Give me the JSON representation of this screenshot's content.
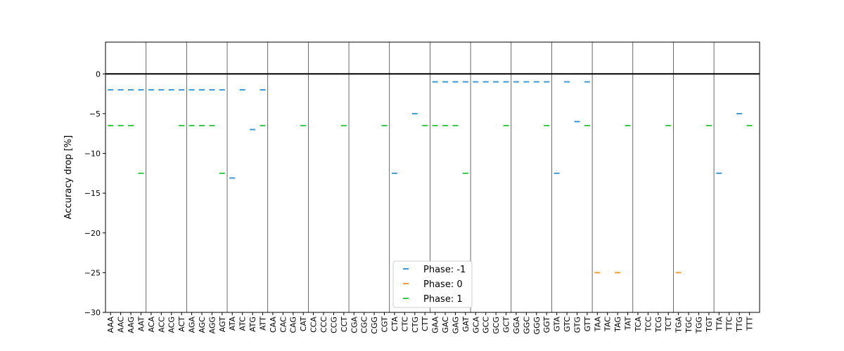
{
  "chart_data": {
    "type": "scatter",
    "title": "",
    "xlabel": "",
    "ylabel": "Accuracy drop [%]",
    "ylim": [
      -30,
      4
    ],
    "yticks": [
      0,
      -5,
      -10,
      -15,
      -20,
      -25,
      -30
    ],
    "categories": [
      "AAA",
      "AAC",
      "AAG",
      "AAT",
      "ACA",
      "ACC",
      "ACG",
      "ACT",
      "AGA",
      "AGC",
      "AGG",
      "AGT",
      "ATA",
      "ATC",
      "ATG",
      "ATT",
      "CAA",
      "CAC",
      "CAG",
      "CAT",
      "CCA",
      "CCC",
      "CCG",
      "CCT",
      "CGA",
      "CGC",
      "CGG",
      "CGT",
      "CTA",
      "CTC",
      "CTG",
      "CTT",
      "GAA",
      "GAC",
      "GAG",
      "GAT",
      "GCA",
      "GCC",
      "GCG",
      "GCT",
      "GGA",
      "GGC",
      "GGG",
      "GGT",
      "GTA",
      "GTC",
      "GTG",
      "GTT",
      "TAA",
      "TAC",
      "TAG",
      "TAT",
      "TCA",
      "TCC",
      "TCG",
      "TCT",
      "TGA",
      "TGC",
      "TGG",
      "TGT",
      "TTA",
      "TTC",
      "TTG",
      "TTT"
    ],
    "group_size": 4,
    "reference_line": 0,
    "legend_position": "lower center",
    "series": [
      {
        "name": "Phase: -1",
        "color": "#3a9ad9",
        "values": [
          -2,
          -2,
          -2,
          -2,
          -2,
          -2,
          -2,
          -2,
          -2,
          -2,
          -2,
          -2,
          -13.1,
          -2,
          -7,
          -2,
          0,
          0,
          0,
          0,
          0,
          0,
          0,
          0,
          0,
          0,
          0,
          0,
          -12.5,
          0,
          -5,
          0,
          -1,
          -1,
          -1,
          -1,
          -1,
          -1,
          -1,
          -1,
          -1,
          -1,
          -1,
          -1,
          -12.5,
          -1,
          -6,
          -1,
          0,
          0,
          0,
          0,
          0,
          0,
          0,
          0,
          0,
          0,
          0,
          0,
          -12.5,
          0,
          -5,
          0
        ]
      },
      {
        "name": "Phase: 0",
        "color": "#f0a030",
        "values": [
          0,
          0,
          0,
          0,
          0,
          0,
          0,
          0,
          0,
          0,
          0,
          0,
          0,
          0,
          0,
          0,
          0,
          0,
          0,
          0,
          0,
          0,
          0,
          0,
          0,
          0,
          0,
          0,
          0,
          0,
          0,
          0,
          0,
          0,
          0,
          0,
          0,
          0,
          0,
          0,
          0,
          0,
          0,
          0,
          0,
          0,
          0,
          0,
          -25,
          0,
          -25,
          0,
          0,
          0,
          0,
          0,
          -25,
          0,
          0,
          0,
          0,
          0,
          0,
          0
        ]
      },
      {
        "name": "Phase: 1",
        "color": "#2ecc40",
        "values": [
          -6.5,
          -6.5,
          -6.5,
          -12.5,
          0,
          0,
          0,
          -6.5,
          -6.5,
          -6.5,
          -6.5,
          -12.5,
          0,
          0,
          0,
          -6.5,
          0,
          0,
          0,
          -6.5,
          0,
          0,
          0,
          -6.5,
          0,
          0,
          0,
          -6.5,
          0,
          0,
          0,
          -6.5,
          -6.5,
          -6.5,
          -6.5,
          -12.5,
          0,
          0,
          0,
          -6.5,
          0,
          0,
          0,
          -6.5,
          0,
          0,
          0,
          -6.5,
          0,
          0,
          0,
          -6.5,
          0,
          0,
          0,
          -6.5,
          0,
          0,
          0,
          -6.5,
          0,
          0,
          0,
          -6.5
        ]
      }
    ]
  }
}
